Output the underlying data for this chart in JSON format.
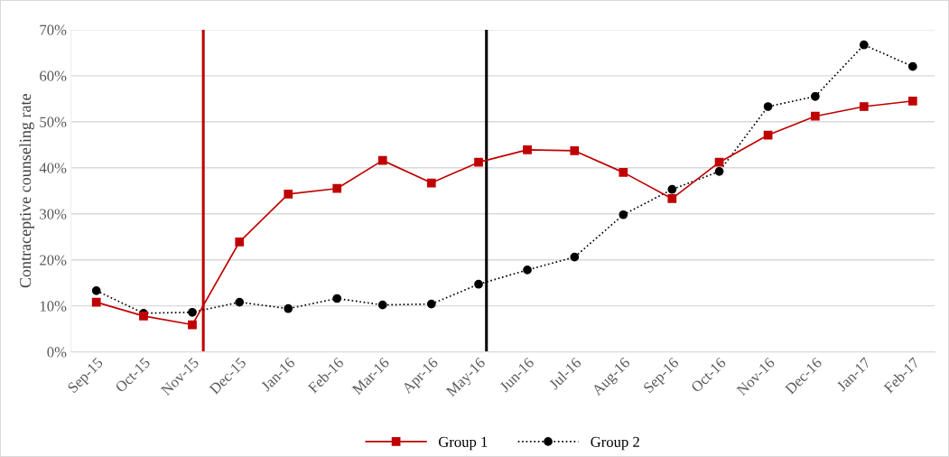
{
  "chart_data": {
    "type": "line",
    "ylabel": "Contraceptive counseling rate",
    "x": [
      "2015-09",
      "2015-10",
      "2015-11",
      "2015-12",
      "2016-01",
      "2016-02",
      "2016-03",
      "2016-04",
      "2016-05",
      "2016-06",
      "2016-07",
      "2016-08",
      "2016-09",
      "2016-10",
      "2016-11",
      "2016-12",
      "2017-01",
      "2017-02"
    ],
    "series": [
      {
        "name": "Group 1",
        "color": "#c00000",
        "marker": "square",
        "line_style": "solid",
        "values": [
          0.108,
          0.078,
          0.059,
          0.239,
          0.343,
          0.355,
          0.416,
          0.367,
          0.412,
          0.439,
          0.437,
          0.39,
          0.333,
          0.412,
          0.471,
          0.512,
          0.533,
          0.545
        ]
      },
      {
        "name": "Group 2",
        "color": "#000000",
        "marker": "circle",
        "line_style": "dotted",
        "values": [
          0.133,
          0.084,
          0.086,
          0.108,
          0.094,
          0.116,
          0.102,
          0.104,
          0.147,
          0.178,
          0.206,
          0.298,
          0.353,
          0.392,
          0.533,
          0.555,
          0.667,
          0.62
        ]
      }
    ],
    "xlim": [
      "2015-08-16",
      "2017-02-15"
    ],
    "xticks": [
      {
        "value": "2015-09",
        "label": "Sep-15"
      },
      {
        "value": "2015-10",
        "label": "Oct-15"
      },
      {
        "value": "2015-11",
        "label": "Nov-15"
      },
      {
        "value": "2015-12",
        "label": "Dec-15"
      },
      {
        "value": "2016-01",
        "label": "Jan-16"
      },
      {
        "value": "2016-02",
        "label": "Feb-16"
      },
      {
        "value": "2016-03",
        "label": "Mar-16"
      },
      {
        "value": "2016-04",
        "label": "Apr-16"
      },
      {
        "value": "2016-05",
        "label": "May-16"
      },
      {
        "value": "2016-06",
        "label": "Jun-16"
      },
      {
        "value": "2016-07",
        "label": "Jul-16"
      },
      {
        "value": "2016-08",
        "label": "Aug-16"
      },
      {
        "value": "2016-09",
        "label": "Sep-16"
      },
      {
        "value": "2016-10",
        "label": "Oct-16"
      },
      {
        "value": "2016-11",
        "label": "Nov-16"
      },
      {
        "value": "2016-12",
        "label": "Dec-16"
      },
      {
        "value": "2017-01",
        "label": "Jan-17"
      },
      {
        "value": "2017-02",
        "label": "Feb-17"
      }
    ],
    "ylim": [
      0,
      0.7
    ],
    "yticks": [
      {
        "value": 0,
        "label": "0%"
      },
      {
        "value": 0.1,
        "label": "10%"
      },
      {
        "value": 0.2,
        "label": "20%"
      },
      {
        "value": 0.3,
        "label": "30%"
      },
      {
        "value": 0.4,
        "label": "40%"
      },
      {
        "value": 0.5,
        "label": "50%"
      },
      {
        "value": 0.6,
        "label": "60%"
      },
      {
        "value": 0.7,
        "label": "70%"
      }
    ],
    "ref_lines": [
      {
        "axis": "x",
        "value": "2015-11-08",
        "color": "#c00000",
        "line_style": "solid"
      },
      {
        "axis": "x",
        "value": "2016-05-06",
        "color": "#000000",
        "line_style": "solid"
      }
    ],
    "grid": "y",
    "legend": "bottom"
  }
}
